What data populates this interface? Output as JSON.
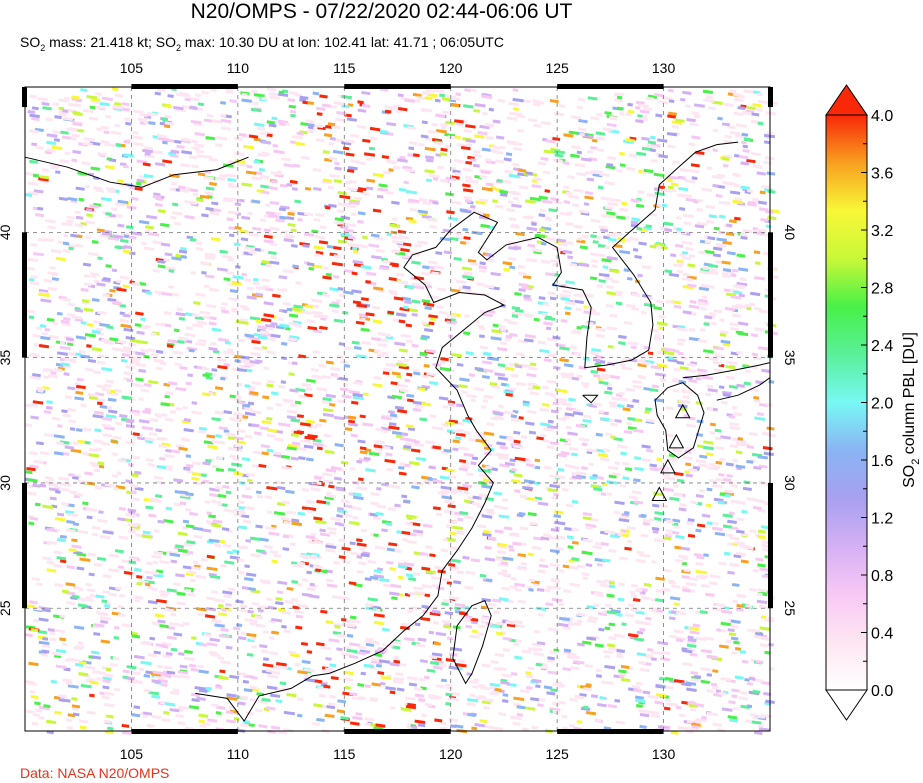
{
  "title": "N20/OMPS - 07/22/2020 02:44-06:06 UT",
  "subtitle": {
    "prefix": "SO",
    "sub": "2",
    "mass_text": " mass: 21.418 kt; ",
    "prefix2": "SO",
    "sub2": "2",
    "max_text": " max: 10.30 DU at lon: 102.41 lat: 41.71 ; 06:05UTC"
  },
  "credit": "Data: NASA N20/OMPS",
  "map": {
    "lon_range": [
      100,
      135
    ],
    "lat_range": [
      20.1,
      45.8
    ],
    "lon_ticks": [
      "105",
      "110",
      "115",
      "120",
      "125",
      "130"
    ],
    "lon_values": [
      105,
      110,
      115,
      120,
      125,
      130
    ],
    "lat_ticks": [
      "25",
      "30",
      "35",
      "40"
    ],
    "lat_values": [
      25,
      30,
      35,
      40
    ],
    "volcano_markers": [
      [
        130.9,
        32.8
      ],
      [
        130.6,
        31.6
      ],
      [
        130.2,
        30.6
      ],
      [
        129.8,
        29.5
      ]
    ]
  },
  "colorbar": {
    "label_main": "SO",
    "label_sub": "2",
    "label_rest": " column PBL [DU]",
    "ticks": [
      "0.0",
      "0.4",
      "0.8",
      "1.2",
      "1.6",
      "2.0",
      "2.4",
      "2.8",
      "3.2",
      "3.6",
      "4.0"
    ],
    "range": [
      0,
      4
    ],
    "colors": [
      "#ffffff",
      "#fde6f2",
      "#f8c8f4",
      "#d4b0f4",
      "#a8a0f0",
      "#8ab4f4",
      "#78f8f4",
      "#5af09a",
      "#48f048",
      "#c8f838",
      "#f8f838",
      "#f8a020",
      "#f82808"
    ]
  }
}
